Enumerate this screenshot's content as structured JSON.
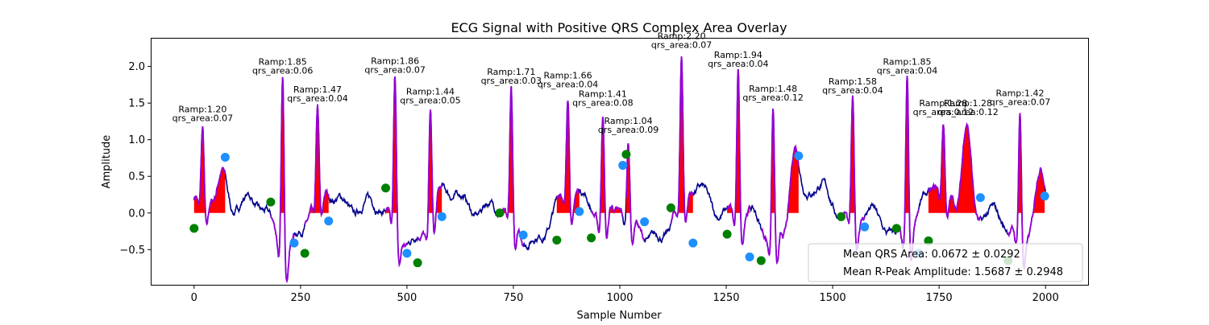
{
  "chart_data": {
    "type": "line",
    "title": "ECG Signal with Positive QRS Complex Area Overlay",
    "xlabel": "Sample Number",
    "ylabel": "Amplitude",
    "xlim": [
      -100,
      2100
    ],
    "ylim": [
      -0.98,
      2.38
    ],
    "x_ticks": [
      0,
      250,
      500,
      750,
      1000,
      1250,
      1500,
      1750,
      2000
    ],
    "y_ticks": [
      -0.5,
      0.0,
      0.5,
      1.0,
      1.5,
      2.0
    ],
    "x_tick_labels": [
      "0",
      "250",
      "500",
      "750",
      "1000",
      "1250",
      "1500",
      "1750",
      "2000"
    ],
    "y_tick_labels": [
      "−0.5",
      "0.0",
      "0.5",
      "1.0",
      "1.5",
      "2.0"
    ],
    "grid": false,
    "legend_position": "lower-right",
    "legend": [
      "Mean QRS Area: 0.0672 ± 0.0292",
      "Mean R-Peak Amplitude: 1.5687 ± 0.2948"
    ],
    "colors": {
      "signal": "#00008b",
      "qrs_segment": "#9400d3",
      "area_fill": "#ff0000",
      "q_point": "#008000",
      "s_point": "#1e90ff"
    },
    "beats": [
      {
        "r_x": 20,
        "r_amp": 1.2,
        "qrs_area": 0.07,
        "label_r": "Ramp:1.20",
        "label_a": "qrs_area:0.07",
        "q": [
          0,
          -0.21
        ],
        "s": [
          73,
          0.76
        ],
        "t_x": 67,
        "t_amp": 0.6
      },
      {
        "r_x": 208,
        "r_amp": 1.85,
        "qrs_area": 0.06,
        "label_r": "Ramp:1.85",
        "label_a": "qrs_area:0.06",
        "q": [
          180,
          0.15
        ],
        "s": [
          235,
          -0.41
        ],
        "t_x": null,
        "t_amp": 0
      },
      {
        "r_x": 290,
        "r_amp": 1.47,
        "qrs_area": 0.04,
        "label_r": "Ramp:1.47",
        "label_a": "qrs_area:0.04",
        "q": [
          260,
          -0.55
        ],
        "s": [
          316,
          -0.11
        ],
        "t_x": null,
        "t_amp": 0
      },
      {
        "r_x": 472,
        "r_amp": 1.86,
        "qrs_area": 0.07,
        "label_r": "Ramp:1.86",
        "label_a": "qrs_area:0.07",
        "q": [
          450,
          0.34
        ],
        "s": [
          500,
          -0.55
        ],
        "t_x": null,
        "t_amp": 0
      },
      {
        "r_x": 555,
        "r_amp": 1.44,
        "qrs_area": 0.05,
        "label_r": "Ramp:1.44",
        "label_a": "qrs_area:0.05",
        "q": [
          525,
          -0.68
        ],
        "s": [
          582,
          -0.05
        ],
        "t_x": null,
        "t_amp": 0
      },
      {
        "r_x": 745,
        "r_amp": 1.71,
        "qrs_area": 0.03,
        "label_r": "Ramp:1.71",
        "label_a": "qrs_area:0.03",
        "q": [
          718,
          0.0
        ],
        "s": [
          773,
          -0.3
        ],
        "t_x": null,
        "t_amp": 0
      },
      {
        "r_x": 878,
        "r_amp": 1.66,
        "qrs_area": 0.04,
        "label_r": "Ramp:1.66",
        "label_a": "qrs_area:0.04",
        "q": [
          852,
          -0.37
        ],
        "s": [
          905,
          0.02
        ],
        "t_x": null,
        "t_amp": 0
      },
      {
        "r_x": 960,
        "r_amp": 1.41,
        "qrs_area": 0.08,
        "label_r": "Ramp:1.41",
        "label_a": "qrs_area:0.08",
        "q": [
          933,
          -0.34
        ],
        "s": [
          1007,
          0.65
        ],
        "t_x": null,
        "t_amp": 0
      },
      {
        "r_x": 1020,
        "r_amp": 1.04,
        "qrs_area": 0.09,
        "label_r": "Ramp:1.04",
        "label_a": "qrs_area:0.09",
        "q": [
          1015,
          0.8
        ],
        "s": [
          1058,
          -0.12
        ],
        "t_x": null,
        "t_amp": 0
      },
      {
        "r_x": 1145,
        "r_amp": 2.2,
        "qrs_area": 0.07,
        "label_r": "Ramp:2.20",
        "label_a": "qrs_area:0.07",
        "q": [
          1120,
          0.07
        ],
        "s": [
          1172,
          -0.41
        ],
        "t_x": null,
        "t_amp": 0
      },
      {
        "r_x": 1278,
        "r_amp": 1.94,
        "qrs_area": 0.04,
        "label_r": "Ramp:1.94",
        "label_a": "qrs_area:0.04",
        "q": [
          1252,
          -0.29
        ],
        "s": [
          1305,
          -0.6
        ],
        "t_x": null,
        "t_amp": 0
      },
      {
        "r_x": 1360,
        "r_amp": 1.48,
        "qrs_area": 0.12,
        "label_r": "Ramp:1.48",
        "label_a": "qrs_area:0.12",
        "q": [
          1332,
          -0.65
        ],
        "s": [
          1420,
          0.78
        ],
        "t_x": 1410,
        "t_amp": 0.88
      },
      {
        "r_x": 1547,
        "r_amp": 1.58,
        "qrs_area": 0.04,
        "label_r": "Ramp:1.58",
        "label_a": "qrs_area:0.04",
        "q": [
          1520,
          -0.05
        ],
        "s": [
          1575,
          -0.19
        ],
        "t_x": null,
        "t_amp": 0
      },
      {
        "r_x": 1675,
        "r_amp": 1.85,
        "qrs_area": 0.04,
        "label_r": "Ramp:1.85",
        "label_a": "qrs_area:0.04",
        "q": [
          1650,
          -0.21
        ],
        "s": [
          1702,
          -0.55
        ],
        "t_x": null,
        "t_amp": 0
      },
      {
        "r_x": 1760,
        "r_amp": 1.28,
        "qrs_area": 0.12,
        "label_r": "Ramp:1.28",
        "label_a": "qrs_area:0.12",
        "q": [
          1725,
          -0.38
        ],
        "s": [
          1847,
          0.21
        ],
        "t_x": 1815,
        "t_amp": 1.25
      },
      {
        "r_x": 1940,
        "r_amp": 1.42,
        "qrs_area": 0.07,
        "label_r": "Ramp:1.42",
        "label_a": "qrs_area:0.07",
        "q": [
          1912,
          -0.65
        ],
        "s": [
          1998,
          0.23
        ],
        "t_x": 1985,
        "t_amp": 0.62
      }
    ],
    "extra_labels": [
      {
        "x": 1818,
        "label_r": "Ramp:1.28",
        "label_a": "qrs_area:0.12"
      }
    ]
  }
}
